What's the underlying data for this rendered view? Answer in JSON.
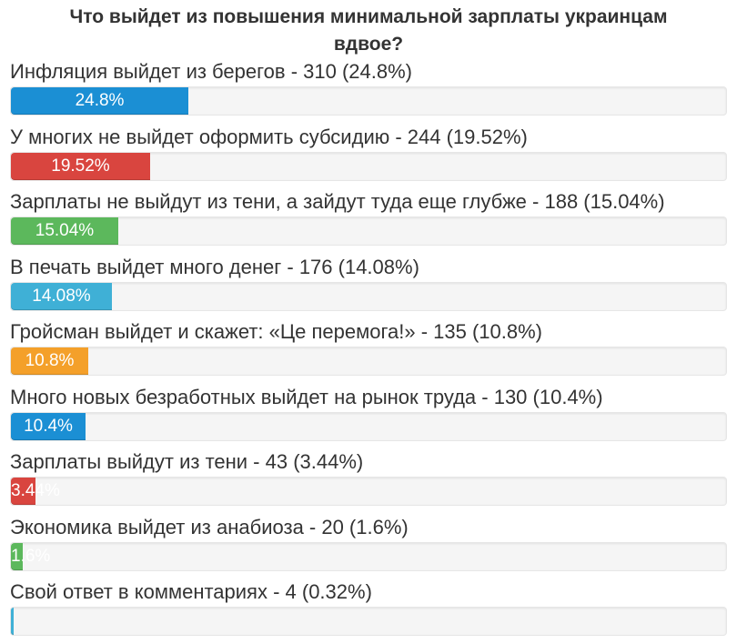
{
  "title_line1": "Что выйдет из повышения минимальной зарплаты украинцам",
  "title_line2": "вдвое?",
  "chart_data": {
    "type": "bar",
    "orientation": "horizontal",
    "title": "Что выйдет из повышения минимальной зарплаты украинцам вдвое?",
    "xlim": [
      0,
      100
    ],
    "items": [
      {
        "text": "Инфляция выйдет из берегов - 310 (24.8%)",
        "votes": 310,
        "percent": 24.8,
        "bar_label": "24.8%",
        "color": "#1b8fd4"
      },
      {
        "text": "У многих не выйдет оформить субсидию - 244 (19.52%)",
        "votes": 244,
        "percent": 19.52,
        "bar_label": "19.52%",
        "color": "#d9453f"
      },
      {
        "text": "Зарплаты не выйдут из тени, а зайдут туда еще глубже - 188 (15.04%)",
        "votes": 188,
        "percent": 15.04,
        "bar_label": "15.04%",
        "color": "#5cb85c"
      },
      {
        "text": "В печать выйдет много денег - 176 (14.08%)",
        "votes": 176,
        "percent": 14.08,
        "bar_label": "14.08%",
        "color": "#3fb0d6"
      },
      {
        "text": "Гройсман выйдет и скажет: «Це перемога!» - 135 (10.8%)",
        "votes": 135,
        "percent": 10.8,
        "bar_label": "10.8%",
        "color": "#f4a02a"
      },
      {
        "text": "Много новых безработных выйдет на рынок труда - 130 (10.4%)",
        "votes": 130,
        "percent": 10.4,
        "bar_label": "10.4%",
        "color": "#1b8fd4"
      },
      {
        "text": "Зарплаты выйдут из тени - 43 (3.44%)",
        "votes": 43,
        "percent": 3.44,
        "bar_label": "3.44%",
        "color": "#d9453f"
      },
      {
        "text": "Экономика выйдет из анабиоза - 20 (1.6%)",
        "votes": 20,
        "percent": 1.6,
        "bar_label": "1.6%",
        "color": "#5cb85c"
      },
      {
        "text": "Свой ответ в комментариях - 4 (0.32%)",
        "votes": 4,
        "percent": 0.32,
        "bar_label": "",
        "color": "#3fb0d6"
      }
    ]
  }
}
